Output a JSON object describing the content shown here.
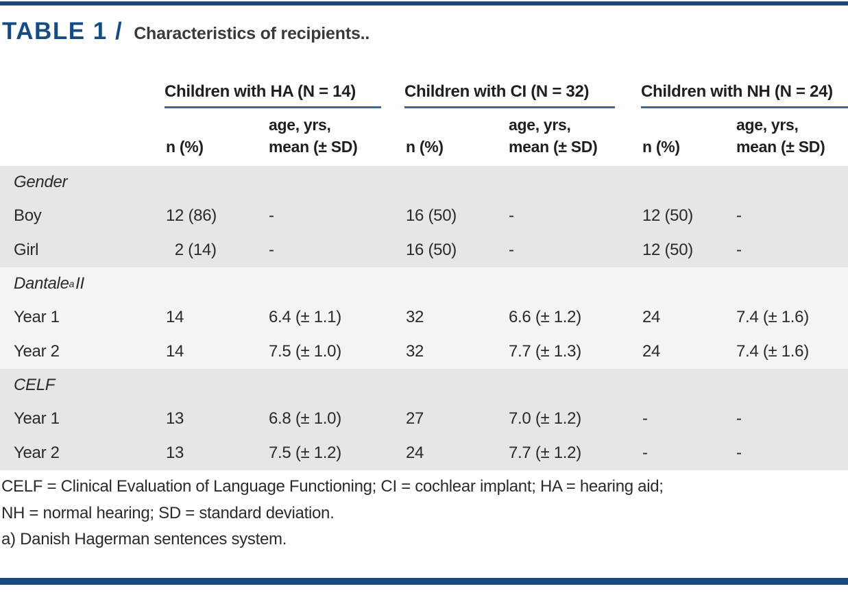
{
  "title": {
    "label": "TABLE 1 /",
    "caption": "Characteristics of recipients.."
  },
  "colors": {
    "accent_bar": "#1a4a82",
    "group_underline": "#336b9e",
    "title_text": "#164b85",
    "section_band_dark": "#e6e6e6",
    "section_band_light": "#f4f4f4"
  },
  "table": {
    "groups": [
      {
        "label": "Children with HA (N = 14)"
      },
      {
        "label": "Children with CI (N = 32)"
      },
      {
        "label": "Children with NH (N = 24)"
      }
    ],
    "subheader": {
      "n_label": "n (%)",
      "age_line1": "age, yrs,",
      "age_line2": "mean (± SD)"
    },
    "sections": [
      {
        "header": {
          "main": "Gender",
          "sup": "",
          "rest": ""
        },
        "rows": [
          {
            "label": "Boy",
            "cells": [
              "12 (86)",
              "-",
              "16 (50)",
              "-",
              "12 (50)",
              "-"
            ]
          },
          {
            "label": "Girl",
            "cells": [
              "  2 (14)",
              "-",
              "16 (50)",
              "-",
              "12 (50)",
              "-"
            ]
          }
        ]
      },
      {
        "header": {
          "main": "Dantale",
          "sup": "a",
          "rest": " II"
        },
        "rows": [
          {
            "label": "Year 1",
            "cells": [
              "14",
              "6.4 (± 1.1)",
              "32",
              "6.6 (± 1.2)",
              "24",
              "7.4 (± 1.6)"
            ]
          },
          {
            "label": "Year 2",
            "cells": [
              "14",
              "7.5 (± 1.0)",
              "32",
              "7.7 (± 1.3)",
              "24",
              "7.4 (± 1.6)"
            ]
          }
        ]
      },
      {
        "header": {
          "main": "CELF",
          "sup": "",
          "rest": ""
        },
        "rows": [
          {
            "label": "Year 1",
            "cells": [
              "13",
              "6.8 (± 1.0)",
              "27",
              "7.0 (± 1.2)",
              "-",
              "-"
            ]
          },
          {
            "label": "Year 2",
            "cells": [
              "13",
              "7.5 (± 1.2)",
              "24",
              "7.7 (± 1.2)",
              "-",
              "-"
            ]
          }
        ]
      }
    ]
  },
  "footnotes": [
    "CELF = Clinical Evaluation of Language Functioning; CI = cochlear implant; HA = hearing aid;",
    "NH = normal hearing; SD = standard deviation.",
    "a) Danish Hagerman sentences system."
  ]
}
